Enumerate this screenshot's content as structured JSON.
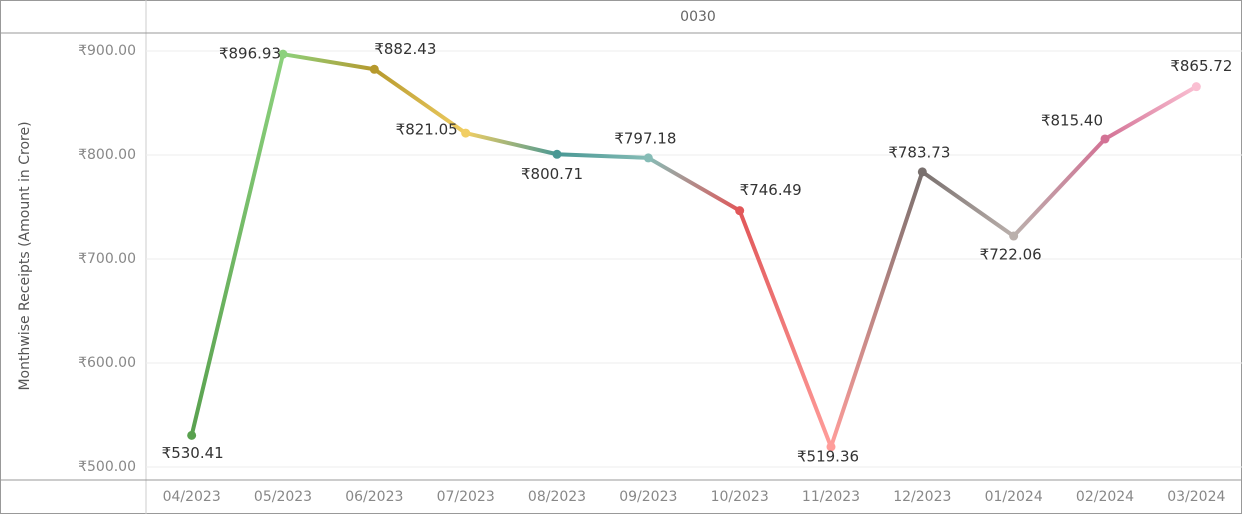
{
  "chart_data": {
    "type": "line",
    "header": "0030",
    "y_label": "Monthwise Receipts (Amount in Crore)",
    "categories": [
      "04/2023",
      "05/2023",
      "06/2023",
      "07/2023",
      "08/2023",
      "09/2023",
      "10/2023",
      "11/2023",
      "12/2023",
      "01/2024",
      "02/2024",
      "03/2024"
    ],
    "values": [
      530.41,
      896.93,
      882.43,
      821.05,
      800.71,
      797.18,
      746.49,
      519.36,
      783.73,
      722.06,
      815.4,
      865.72
    ],
    "value_labels": [
      "₹530.41",
      "₹896.93",
      "₹882.43",
      "₹821.05",
      "₹800.71",
      "₹797.18",
      "₹746.49",
      "₹519.36",
      "₹783.73",
      "₹722.06",
      "₹815.40",
      "₹865.72"
    ],
    "colors": [
      "#59a14f",
      "#8cd17d",
      "#b6992d",
      "#f1ce63",
      "#499894",
      "#86bcb6",
      "#e15759",
      "#ff9d9a",
      "#79706e",
      "#bab0ac",
      "#d37295",
      "#fabfd2"
    ],
    "ylim": [
      487.5,
      917.3
    ],
    "yticks": [
      {
        "value": 500,
        "label": "₹500.00"
      },
      {
        "value": 600,
        "label": "₹600.00"
      },
      {
        "value": 700,
        "label": "₹700.00"
      },
      {
        "value": 800,
        "label": "₹800.00"
      },
      {
        "value": 900,
        "label": "₹900.00"
      }
    ],
    "grid": true
  }
}
